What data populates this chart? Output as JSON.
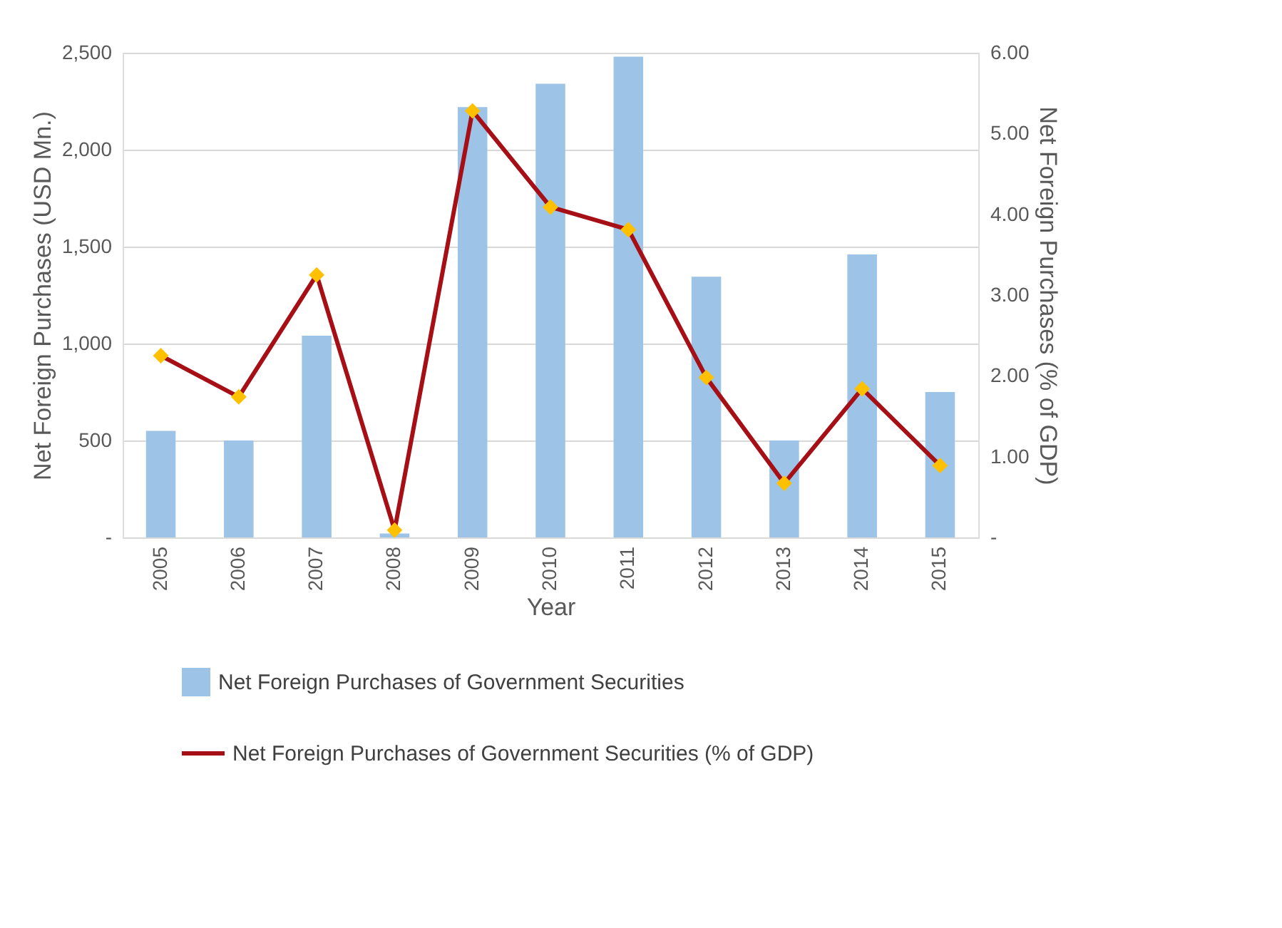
{
  "chart_data": {
    "type": "bar",
    "xlabel": "Year",
    "ylabel": "Net Foreign Purchases (USD Mn.)",
    "y2label": "Net Foreign Purchases  (% of GDP)",
    "categories": [
      "2005",
      "2006",
      "2007",
      "2008",
      "2009",
      "2010",
      "2011",
      "2012",
      "2013",
      "2014",
      "2015"
    ],
    "series": [
      {
        "name": "Net Foreign Purchases of Government Securities",
        "color": "#9dc3e6",
        "values": [
          550,
          500,
          1040,
          20,
          2220,
          2340,
          2480,
          1345,
          500,
          1460,
          750
        ]
      },
      {
        "name": "Net Foreign Purchases of Government Securities (% of GDP)",
        "type": "line",
        "axis": "y2",
        "color": "#a50f15",
        "marker": "diamond",
        "colors": [
          "#ffc000",
          "#ffc000",
          "#ffc000",
          "#ffc000",
          "#ffc000",
          "#ffc000",
          "#ffc000",
          "#ffc000",
          "#ffc000",
          "#ffc000",
          "#ffc000"
        ],
        "values": [
          2.25,
          1.74,
          3.25,
          0.09,
          5.28,
          4.09,
          3.81,
          1.98,
          0.67,
          1.84,
          0.89
        ]
      }
    ],
    "ylim": [
      0,
      2500
    ],
    "yticks": [
      {
        "value": 0,
        "label": "-"
      },
      {
        "value": 500,
        "label": "500"
      },
      {
        "value": 1000,
        "label": "1,000"
      },
      {
        "value": 1500,
        "label": "1,500"
      },
      {
        "value": 2000,
        "label": "2,000"
      },
      {
        "value": 2500,
        "label": "2,500"
      }
    ],
    "y2lim": [
      0,
      6
    ],
    "y2ticks": [
      {
        "value": 0,
        "label": "-"
      },
      {
        "value": 1,
        "label": "1.00"
      },
      {
        "value": 2,
        "label": "2.00"
      },
      {
        "value": 3,
        "label": "3.00"
      },
      {
        "value": 4,
        "label": "4.00"
      },
      {
        "value": 5,
        "label": "5.00"
      },
      {
        "value": 6,
        "label": "6.00"
      }
    ],
    "grid": "y",
    "legend": "bottom"
  }
}
